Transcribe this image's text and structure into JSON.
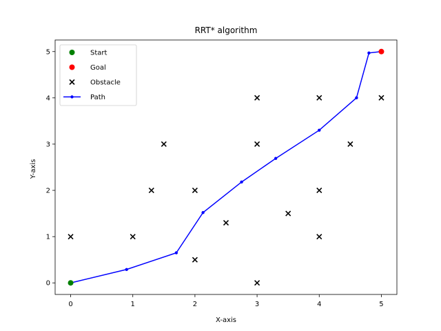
{
  "chart_data": {
    "type": "scatter",
    "title": "RRT* algorithm",
    "xlabel": "X-axis",
    "ylabel": "Y-axis",
    "xlim": [
      -0.25,
      5.25
    ],
    "ylim": [
      -0.25,
      5.25
    ],
    "xticks": [
      0,
      1,
      2,
      3,
      4,
      5
    ],
    "yticks": [
      0,
      1,
      2,
      3,
      4,
      5
    ],
    "grid": false,
    "legend_position": "top-left",
    "series": [
      {
        "name": "Start",
        "kind": "scatter",
        "marker": "circle",
        "color": "#008000",
        "points": [
          [
            0,
            0
          ]
        ]
      },
      {
        "name": "Goal",
        "kind": "scatter",
        "marker": "circle",
        "color": "#ff0000",
        "points": [
          [
            5,
            5
          ]
        ]
      },
      {
        "name": "Obstacle",
        "kind": "scatter",
        "marker": "x",
        "color": "#000000",
        "points": [
          [
            0,
            1
          ],
          [
            1,
            1
          ],
          [
            1.3,
            2
          ],
          [
            1.5,
            3
          ],
          [
            2,
            2
          ],
          [
            2,
            0.5
          ],
          [
            2.5,
            1.3
          ],
          [
            3,
            4
          ],
          [
            3,
            3
          ],
          [
            3,
            0
          ],
          [
            3.5,
            1.5
          ],
          [
            4,
            4
          ],
          [
            4,
            2
          ],
          [
            4,
            1
          ],
          [
            4.5,
            3
          ],
          [
            5,
            4
          ]
        ]
      },
      {
        "name": "Path",
        "kind": "line",
        "marker": "dot",
        "color": "#0000ff",
        "points": [
          [
            0,
            0
          ],
          [
            0.9,
            0.29
          ],
          [
            1.7,
            0.65
          ],
          [
            2.13,
            1.52
          ],
          [
            2.75,
            2.18
          ],
          [
            3.3,
            2.69
          ],
          [
            4.0,
            3.3
          ],
          [
            4.6,
            4.0
          ],
          [
            4.8,
            4.97
          ],
          [
            5,
            5
          ]
        ]
      }
    ]
  }
}
